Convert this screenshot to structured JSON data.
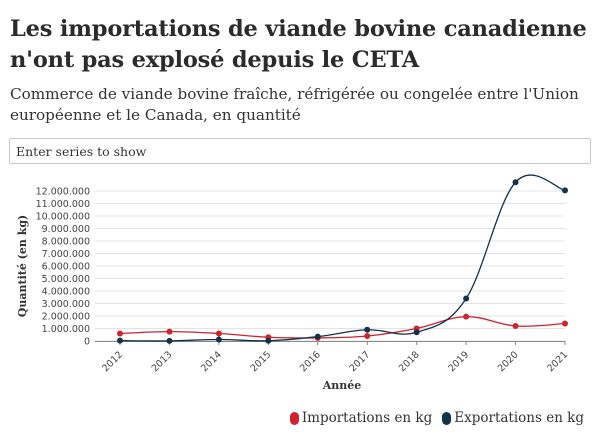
{
  "header": {
    "title": "Les importations de viande bovine canadienne n'ont pas explosé depuis le CETA",
    "subtitle": "Commerce de viande bovine fraîche, réfrigérée ou congelée entre l'Union européenne et le Canada, en quantité"
  },
  "series_filter": {
    "placeholder": "Enter series to show"
  },
  "colors": {
    "importations": "#d1222e",
    "exportations": "#13324c",
    "grid": "#e3e3e3",
    "axis": "#888888"
  },
  "chart_data": {
    "type": "line",
    "xlabel": "Année",
    "ylabel": "Quantité (en kg)",
    "x": [
      "2012",
      "2013",
      "2014",
      "2015",
      "2016",
      "2017",
      "2018",
      "2019",
      "2020",
      "2021"
    ],
    "ylim": [
      0,
      12000000
    ],
    "yticks": [
      0,
      1000000,
      2000000,
      3000000,
      4000000,
      5000000,
      6000000,
      7000000,
      8000000,
      9000000,
      10000000,
      11000000,
      12000000
    ],
    "ytick_labels": [
      "0",
      "1.000.000",
      "2.000.000",
      "3.000.000",
      "4.000.000",
      "5.000.000",
      "6.000.000",
      "7.000.000",
      "8.000.000",
      "9.000.000",
      "10.000.000",
      "11.000.000",
      "12.000.000"
    ],
    "grid": true,
    "legend_position": "bottom-right",
    "series": [
      {
        "name": "Importations en kg",
        "color": "#d1222e",
        "values": [
          600000,
          750000,
          600000,
          300000,
          250000,
          400000,
          1000000,
          1950000,
          1200000,
          1400000
        ]
      },
      {
        "name": "Exportations en kg",
        "color": "#13324c",
        "values": [
          30000,
          10000,
          120000,
          20000,
          350000,
          900000,
          700000,
          3400000,
          12700000,
          12050000
        ]
      }
    ]
  }
}
